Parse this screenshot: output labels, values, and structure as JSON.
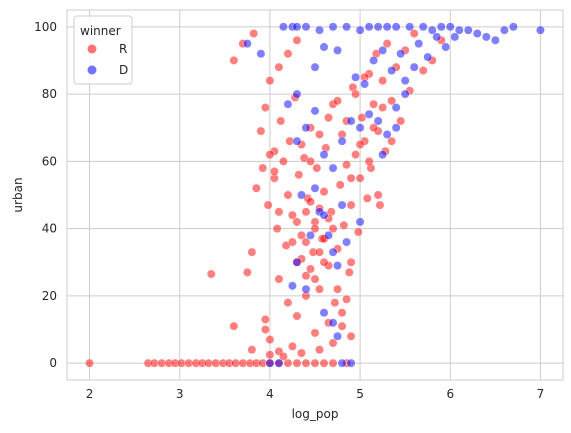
{
  "chart_data": {
    "type": "scatter",
    "title": "",
    "xlabel": "log_pop",
    "ylabel": "urban",
    "xlim": [
      1.75,
      7.25
    ],
    "ylim": [
      -5,
      105
    ],
    "xticks": [
      2,
      3,
      4,
      5,
      6,
      7
    ],
    "yticks": [
      0,
      20,
      40,
      60,
      80,
      100
    ],
    "grid": true,
    "legend": {
      "title": "winner",
      "position": "top-left"
    },
    "series": [
      {
        "name": "R",
        "color": "#ff0000",
        "points": [
          [
            2.0,
            0
          ],
          [
            2.65,
            0
          ],
          [
            2.72,
            0
          ],
          [
            2.8,
            0
          ],
          [
            2.88,
            0
          ],
          [
            2.95,
            0
          ],
          [
            3.02,
            0
          ],
          [
            3.1,
            0
          ],
          [
            3.18,
            0
          ],
          [
            3.25,
            0
          ],
          [
            3.32,
            0
          ],
          [
            3.4,
            0
          ],
          [
            3.48,
            0
          ],
          [
            3.55,
            0
          ],
          [
            3.62,
            0
          ],
          [
            3.7,
            0
          ],
          [
            3.78,
            0
          ],
          [
            3.85,
            0
          ],
          [
            3.92,
            0
          ],
          [
            4.0,
            0
          ],
          [
            4.1,
            0
          ],
          [
            4.2,
            0
          ],
          [
            4.3,
            0
          ],
          [
            4.4,
            0
          ],
          [
            4.5,
            0
          ],
          [
            4.6,
            0
          ],
          [
            4.7,
            0
          ],
          [
            4.85,
            0
          ],
          [
            3.35,
            26.5
          ],
          [
            3.6,
            11
          ],
          [
            3.75,
            27
          ],
          [
            3.8,
            33
          ],
          [
            3.8,
            4
          ],
          [
            3.95,
            13
          ],
          [
            3.95,
            10
          ],
          [
            4.0,
            7
          ],
          [
            4.0,
            2.5
          ],
          [
            4.1,
            3.5
          ],
          [
            4.1,
            25
          ],
          [
            4.15,
            2
          ],
          [
            4.2,
            18
          ],
          [
            4.25,
            5
          ],
          [
            4.3,
            14
          ],
          [
            4.35,
            3
          ],
          [
            4.4,
            20
          ],
          [
            4.5,
            9
          ],
          [
            4.55,
            4
          ],
          [
            4.7,
            6
          ],
          [
            4.8,
            11
          ],
          [
            4.9,
            8
          ],
          [
            3.6,
            90
          ],
          [
            3.7,
            95
          ],
          [
            3.82,
            98
          ],
          [
            3.9,
            69
          ],
          [
            3.95,
            76
          ],
          [
            4.0,
            84
          ],
          [
            4.05,
            55
          ],
          [
            4.1,
            88
          ],
          [
            4.2,
            92
          ],
          [
            4.3,
            96
          ],
          [
            3.85,
            52
          ],
          [
            3.92,
            58
          ],
          [
            3.98,
            47
          ],
          [
            4.05,
            63
          ],
          [
            4.08,
            40
          ],
          [
            4.12,
            72
          ],
          [
            4.18,
            35
          ],
          [
            4.22,
            66
          ],
          [
            4.25,
            44
          ],
          [
            4.28,
            79
          ],
          [
            4.3,
            30
          ],
          [
            4.32,
            56
          ],
          [
            4.35,
            38
          ],
          [
            4.38,
            61
          ],
          [
            4.4,
            26
          ],
          [
            4.42,
            49
          ],
          [
            4.45,
            70
          ],
          [
            4.48,
            33
          ],
          [
            4.5,
            42
          ],
          [
            4.52,
            58
          ],
          [
            4.55,
            22
          ],
          [
            4.58,
            37
          ],
          [
            4.6,
            51
          ],
          [
            4.62,
            64
          ],
          [
            4.65,
            29
          ],
          [
            4.68,
            45
          ],
          [
            4.7,
            77
          ],
          [
            4.72,
            18
          ],
          [
            4.75,
            34
          ],
          [
            4.78,
            53
          ],
          [
            4.8,
            68
          ],
          [
            4.82,
            41
          ],
          [
            4.85,
            59
          ],
          [
            4.88,
            27
          ],
          [
            4.9,
            47
          ],
          [
            4.92,
            82
          ],
          [
            4.95,
            62
          ],
          [
            4.98,
            39
          ],
          [
            5.0,
            55
          ],
          [
            5.02,
            73
          ],
          [
            5.05,
            66
          ],
          [
            5.08,
            49
          ],
          [
            5.1,
            86
          ],
          [
            5.12,
            58
          ],
          [
            5.15,
            77
          ],
          [
            5.18,
            92
          ],
          [
            5.2,
            69
          ],
          [
            5.22,
            47
          ],
          [
            5.25,
            84
          ],
          [
            5.28,
            63
          ],
          [
            5.3,
            95
          ],
          [
            5.35,
            78
          ],
          [
            5.4,
            88
          ],
          [
            5.45,
            72
          ],
          [
            5.5,
            93
          ],
          [
            5.55,
            81
          ],
          [
            5.6,
            98
          ],
          [
            5.7,
            87
          ],
          [
            5.8,
            90
          ],
          [
            5.9,
            96
          ],
          [
            4.35,
            31
          ],
          [
            4.4,
            36
          ],
          [
            4.45,
            28
          ],
          [
            4.5,
            40
          ],
          [
            4.55,
            33
          ],
          [
            4.6,
            37
          ],
          [
            4.65,
            43
          ],
          [
            4.4,
            45
          ],
          [
            4.5,
            25
          ],
          [
            4.6,
            30
          ],
          [
            4.3,
            42
          ],
          [
            4.25,
            36
          ],
          [
            4.45,
            48
          ],
          [
            4.55,
            46
          ],
          [
            4.7,
            40
          ],
          [
            4.75,
            22
          ],
          [
            4.8,
            15
          ],
          [
            4.85,
            19
          ],
          [
            4.9,
            30
          ],
          [
            4.65,
            12
          ],
          [
            4.15,
            60
          ],
          [
            4.2,
            50
          ],
          [
            4.1,
            45
          ],
          [
            4.05,
            57
          ],
          [
            4.0,
            62
          ],
          [
            4.35,
            65
          ],
          [
            4.45,
            60
          ],
          [
            4.55,
            68
          ],
          [
            4.65,
            73
          ],
          [
            4.75,
            78
          ],
          [
            4.85,
            72
          ],
          [
            4.95,
            80
          ],
          [
            5.05,
            85
          ],
          [
            5.15,
            70
          ],
          [
            5.25,
            76
          ],
          [
            5.35,
            66
          ],
          [
            5.1,
            60
          ],
          [
            5.0,
            65
          ],
          [
            4.9,
            55
          ],
          [
            5.2,
            50
          ]
        ]
      },
      {
        "name": "D",
        "color": "#0000ff",
        "points": [
          [
            4.0,
            0
          ],
          [
            4.1,
            0
          ],
          [
            4.9,
            0
          ],
          [
            4.8,
            0
          ],
          [
            3.75,
            95
          ],
          [
            3.9,
            92
          ],
          [
            4.15,
            100
          ],
          [
            4.25,
            100
          ],
          [
            4.3,
            100
          ],
          [
            4.4,
            100
          ],
          [
            4.55,
            99
          ],
          [
            4.7,
            100
          ],
          [
            4.85,
            100
          ],
          [
            5.0,
            99
          ],
          [
            5.1,
            100
          ],
          [
            5.2,
            100
          ],
          [
            5.3,
            100
          ],
          [
            5.4,
            100
          ],
          [
            5.55,
            100
          ],
          [
            5.7,
            100
          ],
          [
            5.8,
            99
          ],
          [
            5.9,
            100
          ],
          [
            6.0,
            100
          ],
          [
            6.1,
            99
          ],
          [
            6.2,
            99
          ],
          [
            6.3,
            98
          ],
          [
            6.4,
            97
          ],
          [
            6.5,
            96
          ],
          [
            6.6,
            99
          ],
          [
            6.7,
            100
          ],
          [
            7.0,
            99
          ],
          [
            4.3,
            80
          ],
          [
            4.5,
            88
          ],
          [
            4.6,
            94
          ],
          [
            4.75,
            93
          ],
          [
            4.95,
            85
          ],
          [
            5.05,
            83
          ],
          [
            5.15,
            90
          ],
          [
            5.25,
            93
          ],
          [
            5.35,
            87
          ],
          [
            5.45,
            92
          ],
          [
            5.5,
            84
          ],
          [
            5.6,
            88
          ],
          [
            5.65,
            95
          ],
          [
            5.75,
            91
          ],
          [
            5.85,
            97
          ],
          [
            5.95,
            94
          ],
          [
            6.05,
            97
          ],
          [
            5.4,
            76
          ],
          [
            5.3,
            68
          ],
          [
            5.2,
            72
          ],
          [
            4.2,
            77
          ],
          [
            4.3,
            66
          ],
          [
            4.4,
            70
          ],
          [
            4.5,
            75
          ],
          [
            4.6,
            62
          ],
          [
            4.7,
            58
          ],
          [
            4.8,
            66
          ],
          [
            4.9,
            72
          ],
          [
            5.0,
            70
          ],
          [
            5.1,
            74
          ],
          [
            4.35,
            50
          ],
          [
            4.5,
            52
          ],
          [
            4.55,
            45
          ],
          [
            4.65,
            38
          ],
          [
            4.7,
            33
          ],
          [
            4.75,
            29
          ],
          [
            4.8,
            47
          ],
          [
            5.25,
            62
          ],
          [
            5.4,
            70
          ],
          [
            5.5,
            80
          ],
          [
            4.25,
            23
          ],
          [
            4.4,
            22
          ],
          [
            4.6,
            15
          ],
          [
            4.7,
            12
          ],
          [
            4.75,
            8
          ],
          [
            4.3,
            30
          ],
          [
            4.45,
            38
          ],
          [
            4.6,
            44
          ],
          [
            4.85,
            36
          ],
          [
            5.0,
            42
          ]
        ]
      }
    ]
  }
}
